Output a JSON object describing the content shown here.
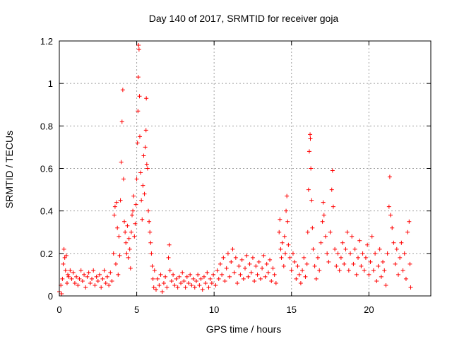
{
  "chart_data": {
    "type": "scatter",
    "title": "Day 140 of 2017, SRMTID for receiver goja",
    "xlabel": "GPS time / hours",
    "ylabel": "SRMTID / TECUs",
    "xlim": [
      0,
      24
    ],
    "ylim": [
      0,
      1.2
    ],
    "x_ticks": [
      0,
      5,
      10,
      15,
      20
    ],
    "y_ticks": [
      0,
      0.2,
      0.4,
      0.6,
      0.8,
      1,
      1.2
    ],
    "y_tick_labels": [
      "0",
      "0.2",
      "0.4",
      "0.6",
      "0.8",
      "1",
      "1.2"
    ],
    "grid": true,
    "marker": "+",
    "series": [
      {
        "name": "SRMTID",
        "color": "#ff0000",
        "points": [
          [
            0.0,
            0.02
          ],
          [
            0.1,
            0.05
          ],
          [
            0.15,
            0.01
          ],
          [
            0.2,
            0.08
          ],
          [
            0.25,
            0.15
          ],
          [
            0.3,
            0.22
          ],
          [
            0.35,
            0.18
          ],
          [
            0.4,
            0.12
          ],
          [
            0.45,
            0.19
          ],
          [
            0.5,
            0.06
          ],
          [
            0.55,
            0.1
          ],
          [
            0.6,
            0.09
          ],
          [
            0.7,
            0.12
          ],
          [
            0.8,
            0.08
          ],
          [
            0.9,
            0.11
          ],
          [
            1.0,
            0.06
          ],
          [
            1.1,
            0.09
          ],
          [
            1.2,
            0.05
          ],
          [
            1.3,
            0.08
          ],
          [
            1.4,
            0.12
          ],
          [
            1.5,
            0.07
          ],
          [
            1.6,
            0.1
          ],
          [
            1.7,
            0.04
          ],
          [
            1.8,
            0.09
          ],
          [
            1.9,
            0.11
          ],
          [
            2.0,
            0.06
          ],
          [
            2.1,
            0.08
          ],
          [
            2.2,
            0.12
          ],
          [
            2.3,
            0.05
          ],
          [
            2.4,
            0.09
          ],
          [
            2.5,
            0.07
          ],
          [
            2.6,
            0.1
          ],
          [
            2.7,
            0.04
          ],
          [
            2.8,
            0.08
          ],
          [
            2.9,
            0.12
          ],
          [
            3.0,
            0.06
          ],
          [
            3.1,
            0.09
          ],
          [
            3.2,
            0.05
          ],
          [
            3.3,
            0.11
          ],
          [
            3.4,
            0.07
          ],
          [
            3.5,
            0.2
          ],
          [
            3.55,
            0.38
          ],
          [
            3.6,
            0.42
          ],
          [
            3.65,
            0.15
          ],
          [
            3.7,
            0.44
          ],
          [
            3.75,
            0.32
          ],
          [
            3.8,
            0.1
          ],
          [
            3.85,
            0.28
          ],
          [
            3.9,
            0.19
          ],
          [
            3.95,
            0.45
          ],
          [
            4.0,
            0.63
          ],
          [
            4.05,
            0.82
          ],
          [
            4.1,
            0.97
          ],
          [
            4.15,
            0.55
          ],
          [
            4.2,
            0.35
          ],
          [
            4.25,
            0.3
          ],
          [
            4.3,
            0.25
          ],
          [
            4.35,
            0.2
          ],
          [
            4.4,
            0.33
          ],
          [
            4.45,
            0.18
          ],
          [
            4.5,
            0.27
          ],
          [
            4.55,
            0.22
          ],
          [
            4.6,
            0.13
          ],
          [
            4.65,
            0.3
          ],
          [
            4.7,
            0.38
          ],
          [
            4.75,
            0.4
          ],
          [
            4.8,
            0.47
          ],
          [
            4.85,
            0.28
          ],
          [
            4.9,
            0.34
          ],
          [
            4.95,
            0.43
          ],
          [
            5.0,
            0.55
          ],
          [
            5.05,
            0.72
          ],
          [
            5.08,
            0.87
          ],
          [
            5.1,
            1.03
          ],
          [
            5.12,
            1.18
          ],
          [
            5.15,
            1.16
          ],
          [
            5.18,
            0.94
          ],
          [
            5.2,
            0.75
          ],
          [
            5.25,
            0.58
          ],
          [
            5.3,
            0.45
          ],
          [
            5.35,
            0.36
          ],
          [
            5.4,
            0.52
          ],
          [
            5.45,
            0.66
          ],
          [
            5.5,
            0.48
          ],
          [
            5.55,
            0.7
          ],
          [
            5.6,
            0.78
          ],
          [
            5.62,
            0.93
          ],
          [
            5.65,
            0.62
          ],
          [
            5.7,
            0.6
          ],
          [
            5.75,
            0.4
          ],
          [
            5.8,
            0.35
          ],
          [
            5.85,
            0.3
          ],
          [
            5.9,
            0.25
          ],
          [
            5.95,
            0.2
          ],
          [
            6.0,
            0.14
          ],
          [
            6.05,
            0.08
          ],
          [
            6.1,
            0.04
          ],
          [
            6.15,
            0.12
          ],
          [
            6.25,
            0.03
          ],
          [
            6.35,
            0.08
          ],
          [
            6.45,
            0.05
          ],
          [
            6.55,
            0.1
          ],
          [
            6.65,
            0.02
          ],
          [
            6.75,
            0.06
          ],
          [
            6.85,
            0.09
          ],
          [
            6.95,
            0.04
          ],
          [
            7.05,
            0.18
          ],
          [
            7.1,
            0.24
          ],
          [
            7.15,
            0.12
          ],
          [
            7.25,
            0.07
          ],
          [
            7.35,
            0.1
          ],
          [
            7.45,
            0.05
          ],
          [
            7.55,
            0.08
          ],
          [
            7.65,
            0.04
          ],
          [
            7.75,
            0.09
          ],
          [
            7.85,
            0.06
          ],
          [
            7.95,
            0.11
          ],
          [
            8.05,
            0.07
          ],
          [
            8.15,
            0.04
          ],
          [
            8.25,
            0.09
          ],
          [
            8.35,
            0.06
          ],
          [
            8.45,
            0.1
          ],
          [
            8.55,
            0.05
          ],
          [
            8.65,
            0.08
          ],
          [
            8.75,
            0.04
          ],
          [
            8.85,
            0.07
          ],
          [
            8.95,
            0.1
          ],
          [
            9.05,
            0.05
          ],
          [
            9.15,
            0.08
          ],
          [
            9.25,
            0.03
          ],
          [
            9.35,
            0.09
          ],
          [
            9.45,
            0.06
          ],
          [
            9.55,
            0.11
          ],
          [
            9.65,
            0.04
          ],
          [
            9.75,
            0.08
          ],
          [
            9.85,
            0.06
          ],
          [
            9.95,
            0.1
          ],
          [
            10.1,
            0.05
          ],
          [
            10.2,
            0.12
          ],
          [
            10.3,
            0.08
          ],
          [
            10.4,
            0.15
          ],
          [
            10.5,
            0.1
          ],
          [
            10.6,
            0.18
          ],
          [
            10.7,
            0.07
          ],
          [
            10.8,
            0.13
          ],
          [
            10.9,
            0.2
          ],
          [
            11.0,
            0.09
          ],
          [
            11.1,
            0.16
          ],
          [
            11.2,
            0.22
          ],
          [
            11.3,
            0.11
          ],
          [
            11.4,
            0.18
          ],
          [
            11.5,
            0.06
          ],
          [
            11.6,
            0.14
          ],
          [
            11.7,
            0.1
          ],
          [
            11.8,
            0.17
          ],
          [
            11.9,
            0.08
          ],
          [
            12.0,
            0.13
          ],
          [
            12.1,
            0.19
          ],
          [
            12.2,
            0.09
          ],
          [
            12.3,
            0.15
          ],
          [
            12.4,
            0.11
          ],
          [
            12.5,
            0.18
          ],
          [
            12.6,
            0.07
          ],
          [
            12.7,
            0.14
          ],
          [
            12.8,
            0.1
          ],
          [
            12.9,
            0.16
          ],
          [
            13.0,
            0.08
          ],
          [
            13.1,
            0.13
          ],
          [
            13.2,
            0.19
          ],
          [
            13.3,
            0.09
          ],
          [
            13.4,
            0.15
          ],
          [
            13.5,
            0.11
          ],
          [
            13.6,
            0.17
          ],
          [
            13.7,
            0.07
          ],
          [
            13.8,
            0.13
          ],
          [
            13.9,
            0.1
          ],
          [
            14.0,
            0.06
          ],
          [
            14.2,
            0.3
          ],
          [
            14.25,
            0.36
          ],
          [
            14.3,
            0.22
          ],
          [
            14.35,
            0.18
          ],
          [
            14.4,
            0.25
          ],
          [
            14.5,
            0.14
          ],
          [
            14.55,
            0.28
          ],
          [
            14.6,
            0.2
          ],
          [
            14.65,
            0.4
          ],
          [
            14.7,
            0.47
          ],
          [
            14.75,
            0.35
          ],
          [
            14.8,
            0.24
          ],
          [
            14.9,
            0.18
          ],
          [
            15.0,
            0.12
          ],
          [
            15.1,
            0.2
          ],
          [
            15.2,
            0.16
          ],
          [
            15.3,
            0.08
          ],
          [
            15.4,
            0.14
          ],
          [
            15.5,
            0.1
          ],
          [
            15.6,
            0.06
          ],
          [
            15.7,
            0.12
          ],
          [
            15.8,
            0.18
          ],
          [
            15.9,
            0.09
          ],
          [
            16.0,
            0.15
          ],
          [
            16.05,
            0.3
          ],
          [
            16.1,
            0.5
          ],
          [
            16.15,
            0.68
          ],
          [
            16.2,
            0.76
          ],
          [
            16.22,
            0.74
          ],
          [
            16.25,
            0.6
          ],
          [
            16.3,
            0.45
          ],
          [
            16.35,
            0.32
          ],
          [
            16.4,
            0.22
          ],
          [
            16.5,
            0.14
          ],
          [
            16.6,
            0.08
          ],
          [
            16.7,
            0.18
          ],
          [
            16.8,
            0.12
          ],
          [
            16.9,
            0.25
          ],
          [
            17.0,
            0.35
          ],
          [
            17.05,
            0.44
          ],
          [
            17.1,
            0.38
          ],
          [
            17.2,
            0.28
          ],
          [
            17.3,
            0.2
          ],
          [
            17.4,
            0.16
          ],
          [
            17.5,
            0.3
          ],
          [
            17.6,
            0.5
          ],
          [
            17.65,
            0.59
          ],
          [
            17.7,
            0.42
          ],
          [
            17.8,
            0.22
          ],
          [
            17.9,
            0.14
          ],
          [
            18.0,
            0.2
          ],
          [
            18.1,
            0.12
          ],
          [
            18.2,
            0.18
          ],
          [
            18.3,
            0.25
          ],
          [
            18.4,
            0.15
          ],
          [
            18.5,
            0.22
          ],
          [
            18.6,
            0.3
          ],
          [
            18.7,
            0.12
          ],
          [
            18.8,
            0.2
          ],
          [
            18.9,
            0.28
          ],
          [
            19.0,
            0.15
          ],
          [
            19.1,
            0.22
          ],
          [
            19.2,
            0.1
          ],
          [
            19.3,
            0.18
          ],
          [
            19.4,
            0.26
          ],
          [
            19.5,
            0.14
          ],
          [
            19.6,
            0.2
          ],
          [
            19.7,
            0.12
          ],
          [
            19.8,
            0.18
          ],
          [
            19.9,
            0.24
          ],
          [
            20.0,
            0.1
          ],
          [
            20.1,
            0.16
          ],
          [
            20.2,
            0.28
          ],
          [
            20.3,
            0.12
          ],
          [
            20.4,
            0.2
          ],
          [
            20.5,
            0.07
          ],
          [
            20.6,
            0.14
          ],
          [
            20.7,
            0.22
          ],
          [
            20.8,
            0.09
          ],
          [
            20.9,
            0.16
          ],
          [
            21.0,
            0.12
          ],
          [
            21.1,
            0.05
          ],
          [
            21.2,
            0.2
          ],
          [
            21.3,
            0.42
          ],
          [
            21.35,
            0.56
          ],
          [
            21.4,
            0.38
          ],
          [
            21.5,
            0.32
          ],
          [
            21.6,
            0.25
          ],
          [
            21.7,
            0.15
          ],
          [
            21.8,
            0.22
          ],
          [
            21.9,
            0.1
          ],
          [
            22.0,
            0.18
          ],
          [
            22.1,
            0.25
          ],
          [
            22.2,
            0.12
          ],
          [
            22.3,
            0.2
          ],
          [
            22.4,
            0.08
          ],
          [
            22.5,
            0.3
          ],
          [
            22.6,
            0.35
          ],
          [
            22.65,
            0.15
          ],
          [
            22.7,
            0.04
          ]
        ]
      }
    ]
  }
}
